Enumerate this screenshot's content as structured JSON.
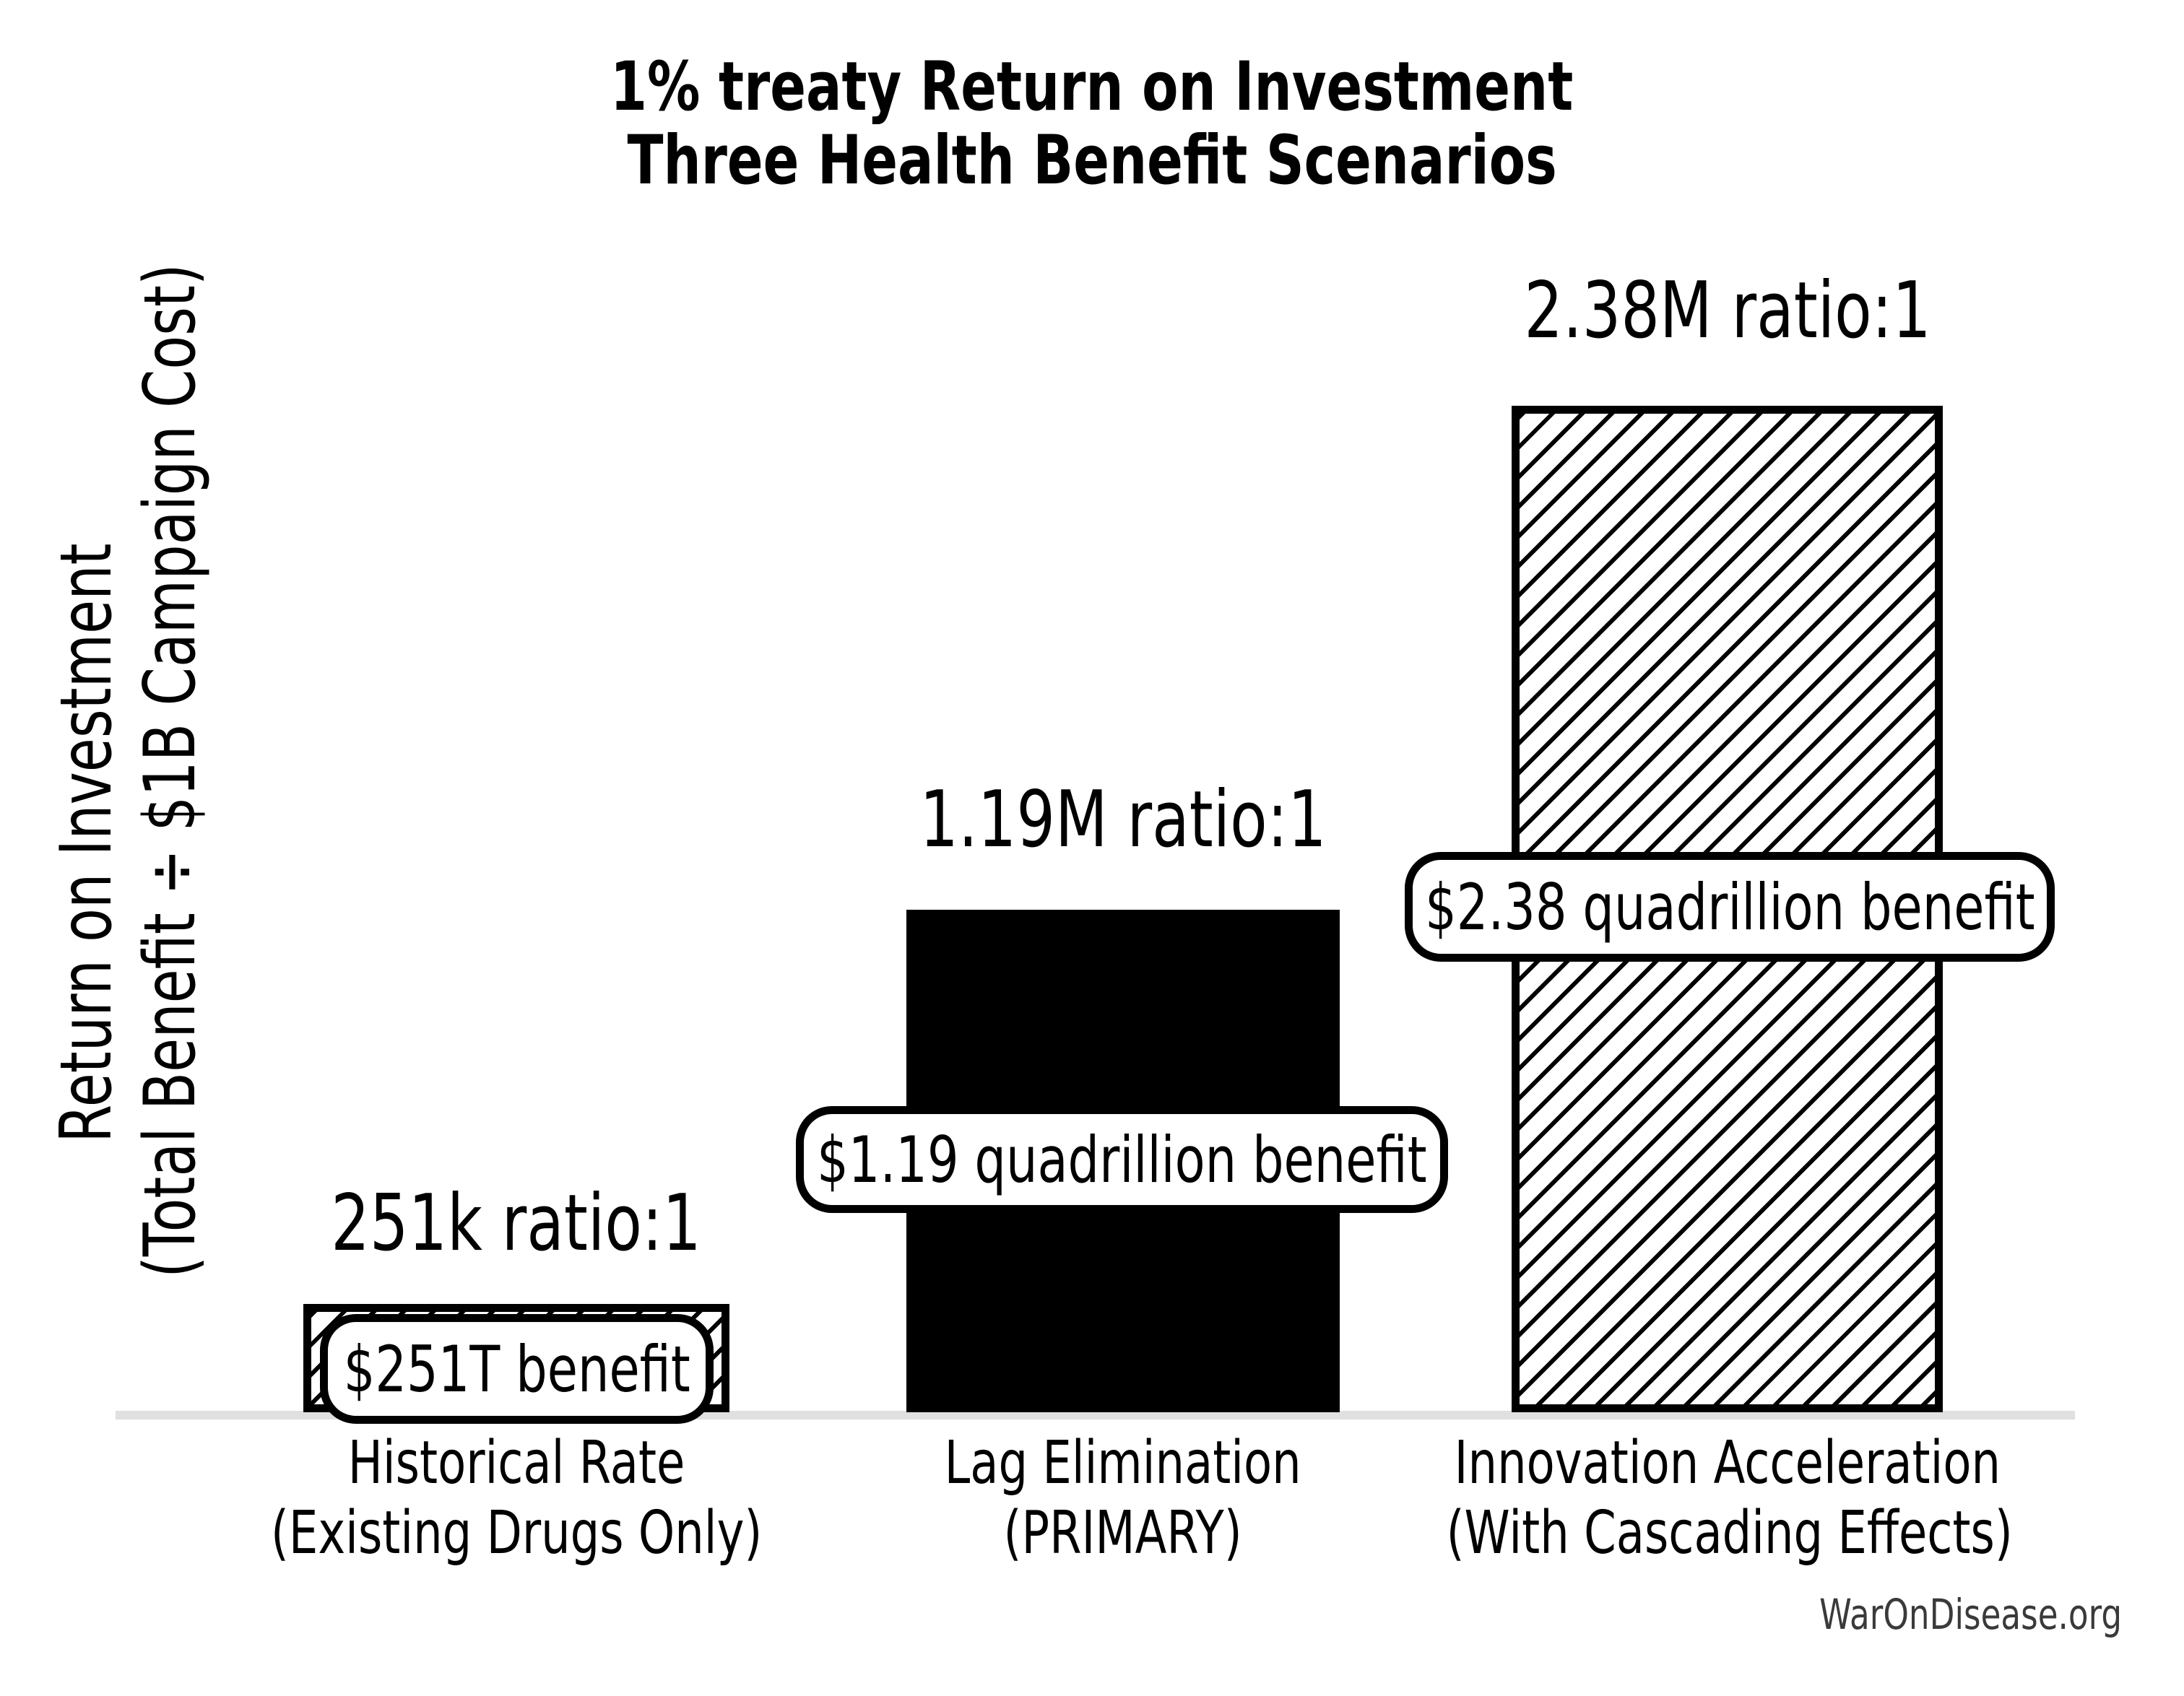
{
  "chart_data": {
    "type": "bar",
    "title_lines": [
      "1% treaty Return on Investment",
      "Three Health Benefit Scenarios"
    ],
    "ylabel_lines": [
      "Return on Investment",
      "(Total Benefit ÷ $1B Campaign Cost)"
    ],
    "xlabel": "",
    "ylim": [
      0,
      2600000
    ],
    "grid": false,
    "legend": false,
    "y_tick_labels": [],
    "categories": [
      "Historical Rate (Existing Drugs Only)",
      "Lag Elimination (PRIMARY)",
      "Innovation Acceleration (With Cascading Effects)"
    ],
    "values": [
      251000,
      1190000,
      2380000
    ],
    "bars": [
      {
        "category_line1": "Historical Rate",
        "category_line2": "(Existing Drugs Only)",
        "roi_ratio": 251000,
        "ratio_label": "251k ratio:1",
        "benefit_label": "$251T benefit",
        "fill": "hatched",
        "hatch": "/",
        "fill_color": "#ffffff",
        "edge_color": "#000000"
      },
      {
        "category_line1": "Lag Elimination",
        "category_line2": "(PRIMARY)",
        "roi_ratio": 1190000,
        "ratio_label": "1.19M ratio:1",
        "benefit_label": "$1.19 quadrillion benefit",
        "fill": "solid",
        "hatch": null,
        "fill_color": "#000000",
        "edge_color": "#000000"
      },
      {
        "category_line1": "Innovation Acceleration",
        "category_line2": "(With Cascading Effects)",
        "roi_ratio": 2380000,
        "ratio_label": "2.38M ratio:1",
        "benefit_label": "$2.38 quadrillion benefit",
        "fill": "hatched",
        "hatch": "/",
        "fill_color": "#ffffff",
        "edge_color": "#000000"
      }
    ]
  },
  "watermark": "WarOnDisease.org",
  "colors": {
    "background": "#ffffff",
    "bar_solid": "#000000",
    "bar_edge": "#000000",
    "baseline": "#e0e0e0",
    "text": "#000000",
    "watermark_text": "#3a3a3a"
  }
}
